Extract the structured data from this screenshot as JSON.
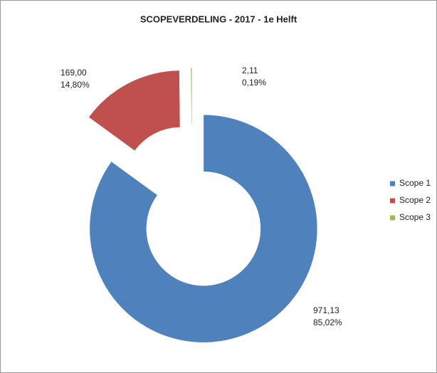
{
  "chart_data": {
    "type": "doughnut",
    "title": "SCOPEVERDELING - 2017 - 1e Helft",
    "categories": [
      "Scope 1",
      "Scope 2",
      "Scope 3"
    ],
    "values": [
      971.13,
      169.0,
      2.11
    ],
    "value_labels": [
      "971,13",
      "169,00",
      "2,11"
    ],
    "percents": [
      85.02,
      14.8,
      0.19
    ],
    "percent_labels": [
      "85,02%",
      "14,80%",
      "0,19%"
    ],
    "colors": [
      "#4f81bd",
      "#c0504d",
      "#9bbb59"
    ],
    "legend": "right"
  }
}
